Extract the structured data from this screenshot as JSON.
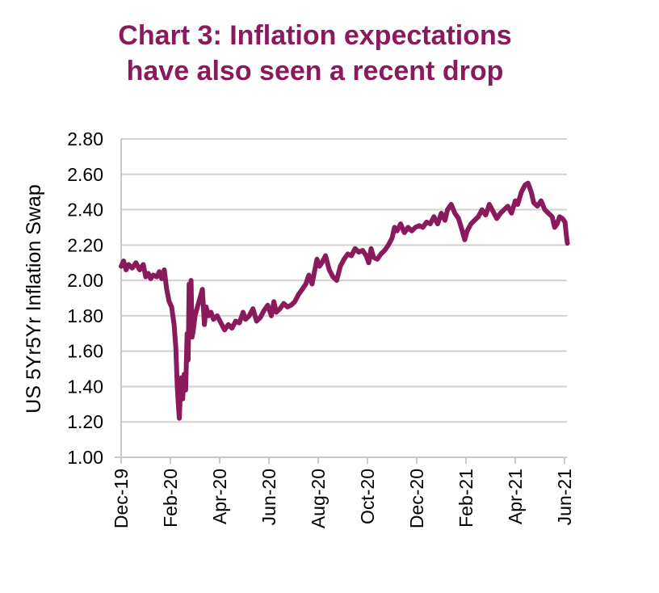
{
  "chart_data": {
    "type": "line",
    "title_lines": [
      "Chart 3: Inflation expectations",
      "have also seen a recent drop"
    ],
    "xlabel": "",
    "ylabel": "US 5Yr5Yr Inflation Swap",
    "ylim": [
      1.0,
      2.8
    ],
    "yticks": [
      "1.00",
      "1.20",
      "1.40",
      "1.60",
      "1.80",
      "2.00",
      "2.20",
      "2.40",
      "2.60",
      "2.80"
    ],
    "xlim_months": [
      0,
      18.1
    ],
    "xticks": [
      {
        "month": 0,
        "label": "Dec-19"
      },
      {
        "month": 2,
        "label": "Feb-20"
      },
      {
        "month": 4,
        "label": "Apr-20"
      },
      {
        "month": 6,
        "label": "Jun-20"
      },
      {
        "month": 8,
        "label": "Aug-20"
      },
      {
        "month": 10,
        "label": "Oct-20"
      },
      {
        "month": 12,
        "label": "Dec-20"
      },
      {
        "month": 14,
        "label": "Feb-21"
      },
      {
        "month": 16,
        "label": "Apr-21"
      },
      {
        "month": 18,
        "label": "Jun-21"
      }
    ],
    "grid": true,
    "line_color": "#8a1a5c",
    "grid_color": "#d0d0d0",
    "title_color": "#8a1a5c",
    "series": [
      {
        "name": "US 5Yr5Yr Inflation Swap",
        "points": [
          [
            0.0,
            2.08
          ],
          [
            0.1,
            2.11
          ],
          [
            0.2,
            2.06
          ],
          [
            0.3,
            2.09
          ],
          [
            0.45,
            2.07
          ],
          [
            0.6,
            2.1
          ],
          [
            0.75,
            2.06
          ],
          [
            0.9,
            2.09
          ],
          [
            1.0,
            2.02
          ],
          [
            1.1,
            2.04
          ],
          [
            1.2,
            2.01
          ],
          [
            1.3,
            2.03
          ],
          [
            1.45,
            2.02
          ],
          [
            1.55,
            2.05
          ],
          [
            1.65,
            2.01
          ],
          [
            1.75,
            2.06
          ],
          [
            1.85,
            1.95
          ],
          [
            1.95,
            1.88
          ],
          [
            2.05,
            1.85
          ],
          [
            2.15,
            1.75
          ],
          [
            2.22,
            1.62
          ],
          [
            2.28,
            1.4
          ],
          [
            2.32,
            1.3
          ],
          [
            2.36,
            1.22
          ],
          [
            2.4,
            1.35
          ],
          [
            2.45,
            1.45
          ],
          [
            2.5,
            1.33
          ],
          [
            2.56,
            1.47
          ],
          [
            2.62,
            1.38
          ],
          [
            2.68,
            1.7
          ],
          [
            2.72,
            1.55
          ],
          [
            2.76,
            1.98
          ],
          [
            2.8,
            1.75
          ],
          [
            2.84,
            2.0
          ],
          [
            2.88,
            1.68
          ],
          [
            2.93,
            1.72
          ],
          [
            3.0,
            1.8
          ],
          [
            3.1,
            1.85
          ],
          [
            3.2,
            1.9
          ],
          [
            3.3,
            1.95
          ],
          [
            3.38,
            1.75
          ],
          [
            3.45,
            1.85
          ],
          [
            3.55,
            1.8
          ],
          [
            3.65,
            1.82
          ],
          [
            3.75,
            1.78
          ],
          [
            3.9,
            1.8
          ],
          [
            4.05,
            1.76
          ],
          [
            4.2,
            1.72
          ],
          [
            4.35,
            1.75
          ],
          [
            4.5,
            1.73
          ],
          [
            4.65,
            1.77
          ],
          [
            4.8,
            1.76
          ],
          [
            4.95,
            1.82
          ],
          [
            5.05,
            1.78
          ],
          [
            5.2,
            1.8
          ],
          [
            5.35,
            1.84
          ],
          [
            5.5,
            1.77
          ],
          [
            5.65,
            1.79
          ],
          [
            5.8,
            1.83
          ],
          [
            5.95,
            1.86
          ],
          [
            6.1,
            1.8
          ],
          [
            6.2,
            1.88
          ],
          [
            6.3,
            1.82
          ],
          [
            6.45,
            1.84
          ],
          [
            6.6,
            1.87
          ],
          [
            6.75,
            1.85
          ],
          [
            6.9,
            1.86
          ],
          [
            7.05,
            1.88
          ],
          [
            7.2,
            1.92
          ],
          [
            7.35,
            1.95
          ],
          [
            7.5,
            1.98
          ],
          [
            7.62,
            2.03
          ],
          [
            7.75,
            1.98
          ],
          [
            7.85,
            2.05
          ],
          [
            7.95,
            2.12
          ],
          [
            8.05,
            2.08
          ],
          [
            8.15,
            2.1
          ],
          [
            8.3,
            2.14
          ],
          [
            8.45,
            2.06
          ],
          [
            8.6,
            2.02
          ],
          [
            8.75,
            2.0
          ],
          [
            8.9,
            2.08
          ],
          [
            9.05,
            2.12
          ],
          [
            9.2,
            2.15
          ],
          [
            9.35,
            2.14
          ],
          [
            9.5,
            2.18
          ],
          [
            9.65,
            2.16
          ],
          [
            9.8,
            2.17
          ],
          [
            9.95,
            2.14
          ],
          [
            10.05,
            2.1
          ],
          [
            10.15,
            2.18
          ],
          [
            10.25,
            2.13
          ],
          [
            10.4,
            2.12
          ],
          [
            10.55,
            2.15
          ],
          [
            10.7,
            2.17
          ],
          [
            10.85,
            2.2
          ],
          [
            11.0,
            2.24
          ],
          [
            11.1,
            2.3
          ],
          [
            11.2,
            2.28
          ],
          [
            11.35,
            2.32
          ],
          [
            11.5,
            2.27
          ],
          [
            11.65,
            2.3
          ],
          [
            11.8,
            2.28
          ],
          [
            11.95,
            2.3
          ],
          [
            12.1,
            2.31
          ],
          [
            12.25,
            2.3
          ],
          [
            12.4,
            2.33
          ],
          [
            12.55,
            2.32
          ],
          [
            12.7,
            2.36
          ],
          [
            12.85,
            2.32
          ],
          [
            13.0,
            2.38
          ],
          [
            13.15,
            2.34
          ],
          [
            13.25,
            2.4
          ],
          [
            13.4,
            2.43
          ],
          [
            13.55,
            2.38
          ],
          [
            13.7,
            2.35
          ],
          [
            13.85,
            2.28
          ],
          [
            13.95,
            2.23
          ],
          [
            14.05,
            2.28
          ],
          [
            14.2,
            2.32
          ],
          [
            14.35,
            2.34
          ],
          [
            14.5,
            2.36
          ],
          [
            14.65,
            2.4
          ],
          [
            14.8,
            2.37
          ],
          [
            14.95,
            2.43
          ],
          [
            15.1,
            2.39
          ],
          [
            15.25,
            2.35
          ],
          [
            15.4,
            2.38
          ],
          [
            15.55,
            2.4
          ],
          [
            15.7,
            2.42
          ],
          [
            15.85,
            2.38
          ],
          [
            16.0,
            2.45
          ],
          [
            16.1,
            2.43
          ],
          [
            16.25,
            2.5
          ],
          [
            16.4,
            2.54
          ],
          [
            16.52,
            2.55
          ],
          [
            16.65,
            2.5
          ],
          [
            16.75,
            2.44
          ],
          [
            16.9,
            2.42
          ],
          [
            17.05,
            2.45
          ],
          [
            17.2,
            2.4
          ],
          [
            17.35,
            2.38
          ],
          [
            17.5,
            2.36
          ],
          [
            17.6,
            2.3
          ],
          [
            17.7,
            2.32
          ],
          [
            17.8,
            2.36
          ],
          [
            17.92,
            2.35
          ],
          [
            18.02,
            2.33
          ],
          [
            18.08,
            2.25
          ],
          [
            18.12,
            2.21
          ]
        ]
      }
    ]
  }
}
